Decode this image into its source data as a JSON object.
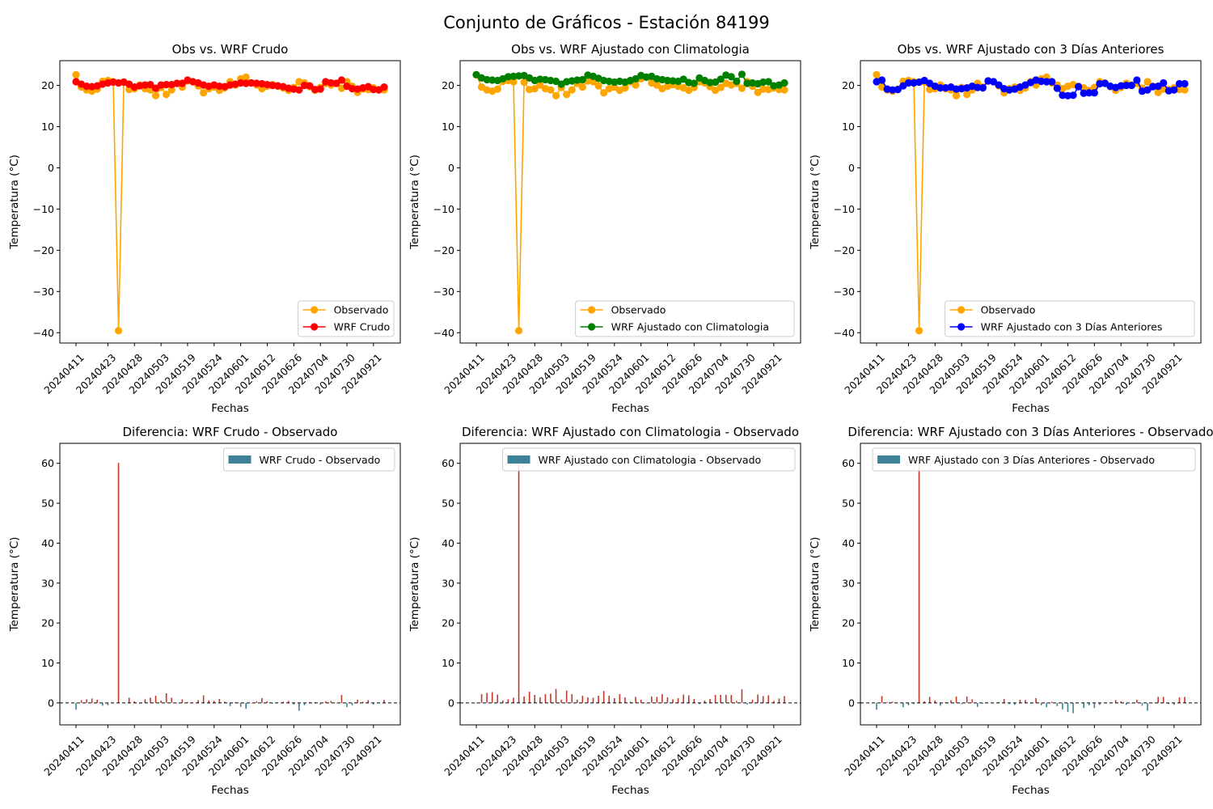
{
  "figure_title": "Conjunto de Gráficos - Estación 84199",
  "colors": {
    "observed": "#FFA500",
    "wrf_crudo": "#FF0000",
    "wrf_clima": "#008000",
    "wrf_3dias": "#0000FF",
    "bar_pos": "#C0392B",
    "bar_neg": "#3D8296"
  },
  "chart_data": [
    {
      "type": "line",
      "title": "Obs vs. WRF Crudo",
      "xlabel": "Fechas",
      "ylabel": "Temperatura (°C)",
      "ylim": [
        -42.5,
        26
      ],
      "yticks": [
        -40,
        -30,
        -20,
        -10,
        0,
        10,
        20
      ],
      "xtick_labels": [
        "20240411",
        "20240423",
        "20240428",
        "20240503",
        "20240519",
        "20240524",
        "20240601",
        "20240612",
        "20240626",
        "20240704",
        "20240730",
        "20240921"
      ],
      "legend_position": "lower right",
      "series": [
        {
          "name": "Observado",
          "color": "#FFA500",
          "values": [
            22.6,
            19.6,
            18.9,
            18.6,
            19.1,
            21.0,
            21.2,
            20.9,
            -39.5,
            20.8,
            19.0,
            19.2,
            20.1,
            19.2,
            18.9,
            17.5,
            19.5,
            17.8,
            18.9,
            20.5,
            19.6,
            21.1,
            20.9,
            19.9,
            18.2,
            19.2,
            19.6,
            18.8,
            19.4,
            20.9,
            20.1,
            21.6,
            22.0,
            20.6,
            20.1,
            19.2,
            19.8,
            20.2,
            19.8,
            19.4,
            18.8,
            19.5,
            20.9,
            20.6,
            19.7,
            18.8,
            19.5,
            20.5,
            20.1,
            20.5,
            19.3,
            20.9,
            19.8,
            18.3,
            19.1,
            19.0,
            19.4,
            19.0,
            18.9
          ]
        },
        {
          "name": "WRF Crudo",
          "color": "#FF0000",
          "values": [
            20.9,
            20.3,
            19.8,
            19.7,
            19.9,
            20.3,
            20.6,
            20.8,
            20.6,
            20.8,
            20.3,
            19.6,
            19.9,
            20.1,
            20.2,
            19.3,
            20.1,
            20.2,
            20.2,
            20.5,
            20.5,
            21.3,
            20.9,
            20.6,
            20.1,
            19.8,
            20.1,
            19.8,
            19.7,
            20.1,
            20.3,
            20.6,
            20.5,
            20.6,
            20.5,
            20.4,
            20.2,
            20.0,
            19.9,
            19.7,
            19.3,
            19.1,
            18.9,
            20.0,
            19.9,
            19.0,
            19.1,
            20.9,
            20.6,
            20.5,
            21.3,
            19.8,
            19.2,
            19.1,
            19.4,
            19.7,
            19.0,
            18.9,
            19.6
          ]
        }
      ]
    },
    {
      "type": "line",
      "title": "Obs vs. WRF Ajustado con Climatologia",
      "xlabel": "Fechas",
      "ylabel": "Temperatura (°C)",
      "ylim": [
        -42.5,
        26
      ],
      "yticks": [
        -40,
        -30,
        -20,
        -10,
        0,
        10,
        20
      ],
      "xtick_labels": [
        "20240411",
        "20240423",
        "20240428",
        "20240503",
        "20240519",
        "20240524",
        "20240601",
        "20240612",
        "20240626",
        "20240704",
        "20240730",
        "20240921"
      ],
      "legend_position": "lower right",
      "series": [
        {
          "name": "Observado",
          "color": "#FFA500",
          "values": [
            22.6,
            19.6,
            18.9,
            18.6,
            19.1,
            21.0,
            21.2,
            20.9,
            -39.5,
            20.8,
            19.0,
            19.2,
            20.1,
            19.2,
            18.9,
            17.5,
            19.5,
            17.8,
            18.9,
            20.5,
            19.6,
            21.1,
            20.9,
            19.9,
            18.2,
            19.2,
            19.6,
            18.8,
            19.4,
            20.9,
            20.1,
            21.6,
            22.0,
            20.6,
            20.1,
            19.2,
            19.8,
            20.2,
            19.8,
            19.4,
            18.8,
            19.5,
            20.9,
            20.6,
            19.7,
            18.8,
            19.5,
            20.5,
            20.1,
            20.5,
            19.3,
            20.9,
            19.8,
            18.3,
            19.1,
            19.0,
            19.4,
            19.0,
            18.9
          ]
        },
        {
          "name": "WRF Ajustado con Climatologia",
          "color": "#008000",
          "values": [
            22.6,
            21.8,
            21.4,
            21.3,
            21.2,
            21.6,
            22.1,
            22.2,
            22.3,
            22.4,
            21.8,
            21.2,
            21.5,
            21.4,
            21.2,
            21.0,
            20.3,
            20.9,
            21.1,
            21.3,
            21.4,
            22.5,
            22.2,
            21.7,
            21.2,
            21.0,
            20.8,
            21.0,
            20.8,
            21.2,
            21.6,
            22.4,
            22.0,
            22.2,
            21.6,
            21.4,
            21.2,
            21.1,
            21.0,
            21.5,
            20.7,
            20.5,
            21.8,
            21.2,
            20.7,
            20.8,
            21.5,
            22.5,
            22.1,
            21.0,
            22.7,
            20.5,
            20.6,
            20.4,
            20.8,
            20.9,
            19.9,
            20.1,
            20.6
          ]
        }
      ]
    },
    {
      "type": "line",
      "title": "Obs vs. WRF Ajustado con 3 Días Anteriores",
      "xlabel": "Fechas",
      "ylabel": "Temperatura (°C)",
      "ylim": [
        -42.5,
        26
      ],
      "yticks": [
        -40,
        -30,
        -20,
        -10,
        0,
        10,
        20
      ],
      "xtick_labels": [
        "20240411",
        "20240423",
        "20240428",
        "20240503",
        "20240519",
        "20240524",
        "20240601",
        "20240612",
        "20240626",
        "20240704",
        "20240730",
        "20240921"
      ],
      "legend_position": "lower right",
      "series": [
        {
          "name": "Observado",
          "color": "#FFA500",
          "values": [
            22.6,
            19.6,
            18.9,
            18.6,
            19.1,
            21.0,
            21.2,
            20.9,
            -39.5,
            20.8,
            19.0,
            19.2,
            20.1,
            19.2,
            18.9,
            17.5,
            19.5,
            17.8,
            18.9,
            20.5,
            19.6,
            21.1,
            20.9,
            19.9,
            18.2,
            19.2,
            19.6,
            18.8,
            19.4,
            20.9,
            20.1,
            21.6,
            22.0,
            20.6,
            20.1,
            19.2,
            19.8,
            20.2,
            19.8,
            19.4,
            18.8,
            19.5,
            20.9,
            20.6,
            19.7,
            18.8,
            19.5,
            20.5,
            20.1,
            20.5,
            19.3,
            20.9,
            19.8,
            18.3,
            19.1,
            19.0,
            19.4,
            19.0,
            18.9
          ]
        },
        {
          "name": "WRF Ajustado con 3 Días Anteriores",
          "color": "#0000FF",
          "values": [
            20.9,
            21.3,
            19.1,
            18.9,
            19.0,
            19.9,
            20.6,
            20.6,
            20.8,
            21.2,
            20.5,
            19.8,
            19.4,
            19.4,
            19.6,
            19.1,
            19.2,
            19.4,
            19.8,
            19.5,
            19.4,
            21.1,
            20.9,
            20.1,
            19.2,
            18.9,
            19.1,
            19.6,
            20.1,
            20.7,
            21.3,
            21.0,
            20.9,
            20.9,
            19.3,
            17.6,
            17.5,
            17.6,
            19.7,
            18.1,
            18.2,
            18.2,
            20.4,
            20.5,
            19.8,
            19.5,
            19.9,
            20.0,
            20.0,
            21.3,
            18.6,
            18.9,
            19.7,
            19.8,
            20.6,
            18.7,
            18.9,
            20.4,
            20.4
          ]
        }
      ]
    },
    {
      "type": "bar",
      "title": "Diferencia: WRF Crudo - Observado",
      "xlabel": "Fechas",
      "ylabel": "Temperatura (°C)",
      "ylim": [
        -5.5,
        65
      ],
      "yticks": [
        0,
        10,
        20,
        30,
        40,
        50,
        60
      ],
      "xtick_labels": [
        "20240411",
        "20240423",
        "20240428",
        "20240503",
        "20240519",
        "20240524",
        "20240601",
        "20240612",
        "20240626",
        "20240704",
        "20240730",
        "20240921"
      ],
      "legend_position": "upper right",
      "series": [
        {
          "name": "WRF Crudo - Observado",
          "color": "#3D8296",
          "values": [
            -1.7,
            0.7,
            0.9,
            1.1,
            0.8,
            -0.7,
            -0.6,
            -0.1,
            60.1,
            0.0,
            1.3,
            0.4,
            -0.2,
            0.9,
            1.3,
            1.8,
            0.6,
            2.4,
            1.3,
            0.0,
            0.9,
            0.2,
            0.0,
            0.7,
            1.9,
            0.6,
            0.5,
            1.0,
            0.3,
            -0.8,
            0.2,
            -1.0,
            -1.5,
            0.0,
            0.4,
            1.2,
            0.4,
            -0.2,
            0.1,
            0.3,
            0.5,
            -0.4,
            -2.0,
            -0.6,
            0.2,
            0.2,
            -0.4,
            0.4,
            0.5,
            0.0,
            2.0,
            -1.1,
            -0.6,
            0.8,
            0.3,
            0.7,
            -0.4,
            -0.1,
            0.7
          ]
        }
      ]
    },
    {
      "type": "bar",
      "title": "Diferencia: WRF Ajustado con Climatologia - Observado",
      "xlabel": "Fechas",
      "ylabel": "Temperatura (°C)",
      "ylim": [
        -5.5,
        65
      ],
      "yticks": [
        0,
        10,
        20,
        30,
        40,
        50,
        60
      ],
      "xtick_labels": [
        "20240411",
        "20240423",
        "20240428",
        "20240503",
        "20240519",
        "20240524",
        "20240601",
        "20240612",
        "20240626",
        "20240704",
        "20240730",
        "20240921"
      ],
      "legend_position": "upper right",
      "series": [
        {
          "name": "WRF Ajustado con Climatologia - Observado",
          "color": "#3D8296",
          "values": [
            0.0,
            2.2,
            2.5,
            2.7,
            2.1,
            0.6,
            0.9,
            1.3,
            61.8,
            1.6,
            2.8,
            2.0,
            1.4,
            2.2,
            2.3,
            3.5,
            0.8,
            3.1,
            2.2,
            0.8,
            1.8,
            1.4,
            1.3,
            1.8,
            3.0,
            1.8,
            1.2,
            2.2,
            1.4,
            0.3,
            1.5,
            0.8,
            0.0,
            1.6,
            1.5,
            2.2,
            1.4,
            0.9,
            1.2,
            2.1,
            1.9,
            1.0,
            -0.3,
            0.6,
            1.0,
            2.0,
            2.0,
            2.0,
            2.0,
            0.5,
            3.4,
            -0.4,
            0.8,
            2.1,
            1.7,
            1.9,
            0.5,
            1.1,
            1.7
          ]
        }
      ]
    },
    {
      "type": "bar",
      "title": "Diferencia: WRF Ajustado con 3 Días Anteriores - Observado",
      "xlabel": "Fechas",
      "ylabel": "Temperatura (°C)",
      "ylim": [
        -5.5,
        65
      ],
      "yticks": [
        0,
        10,
        20,
        30,
        40,
        50,
        60
      ],
      "xtick_labels": [
        "20240411",
        "20240423",
        "20240428",
        "20240503",
        "20240519",
        "20240524",
        "20240601",
        "20240612",
        "20240626",
        "20240704",
        "20240730",
        "20240921"
      ],
      "legend_position": "upper right",
      "series": [
        {
          "name": "WRF Ajustado con 3 Días Anteriores - Observado",
          "color": "#3D8296",
          "values": [
            -1.7,
            1.7,
            0.2,
            0.3,
            -0.1,
            -1.1,
            -0.6,
            -0.3,
            60.3,
            0.4,
            1.5,
            0.6,
            -0.7,
            0.2,
            0.7,
            1.6,
            -0.3,
            1.6,
            0.9,
            -1.0,
            -0.2,
            0.0,
            0.0,
            0.2,
            1.0,
            -0.3,
            -0.5,
            0.8,
            0.7,
            -0.2,
            1.2,
            -0.6,
            -1.1,
            0.3,
            -0.8,
            -1.6,
            -2.3,
            -2.6,
            -0.1,
            -1.3,
            -0.6,
            -1.3,
            -0.5,
            -0.1,
            0.1,
            0.7,
            0.4,
            -0.5,
            -0.1,
            0.8,
            -0.7,
            -2.0,
            -0.1,
            1.5,
            1.5,
            -0.3,
            -0.5,
            1.4,
            1.5
          ]
        }
      ]
    }
  ]
}
